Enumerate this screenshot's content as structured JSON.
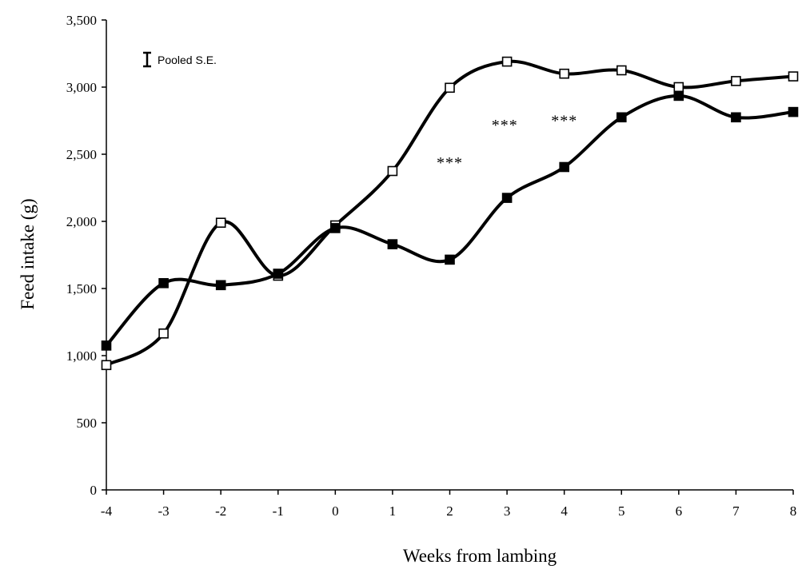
{
  "chart_data": {
    "type": "line",
    "xlabel": "Weeks from lambing",
    "ylabel": "Feed intake (g)",
    "xlim": [
      -4,
      8
    ],
    "ylim": [
      0,
      3500
    ],
    "x_ticks": [
      -4,
      -3,
      -2,
      -1,
      0,
      1,
      2,
      3,
      4,
      5,
      6,
      7,
      8
    ],
    "y_ticks": [
      0,
      500,
      1000,
      1500,
      2000,
      2500,
      3000,
      3500
    ],
    "y_tick_labels": [
      "0",
      "500",
      "1,000",
      "1,500",
      "2,000",
      "2,500",
      "3,000",
      "3,500"
    ],
    "grid": false,
    "legend": {
      "label": "Pooled S.E.",
      "position": "top-left"
    },
    "series": [
      {
        "marker": "open-square",
        "x": [
          -4,
          -3,
          -2,
          -1,
          0,
          1,
          2,
          3,
          4,
          5,
          6,
          7,
          8
        ],
        "values": [
          930,
          1165,
          1990,
          1595,
          1970,
          2375,
          2995,
          3190,
          3100,
          3125,
          3000,
          3045,
          3080
        ]
      },
      {
        "marker": "filled-square",
        "x": [
          -4,
          -3,
          -2,
          -1,
          0,
          1,
          2,
          3,
          4,
          5,
          6,
          7,
          8
        ],
        "values": [
          1075,
          1540,
          1525,
          1610,
          1950,
          1830,
          1715,
          2175,
          2405,
          2775,
          2935,
          2775,
          2815
        ]
      }
    ],
    "annotations": [
      {
        "text": "***",
        "x": 2.0,
        "y": 2400
      },
      {
        "text": "***",
        "x": 2.96,
        "y": 2680
      },
      {
        "text": "***",
        "x": 4.0,
        "y": 2710
      }
    ]
  }
}
